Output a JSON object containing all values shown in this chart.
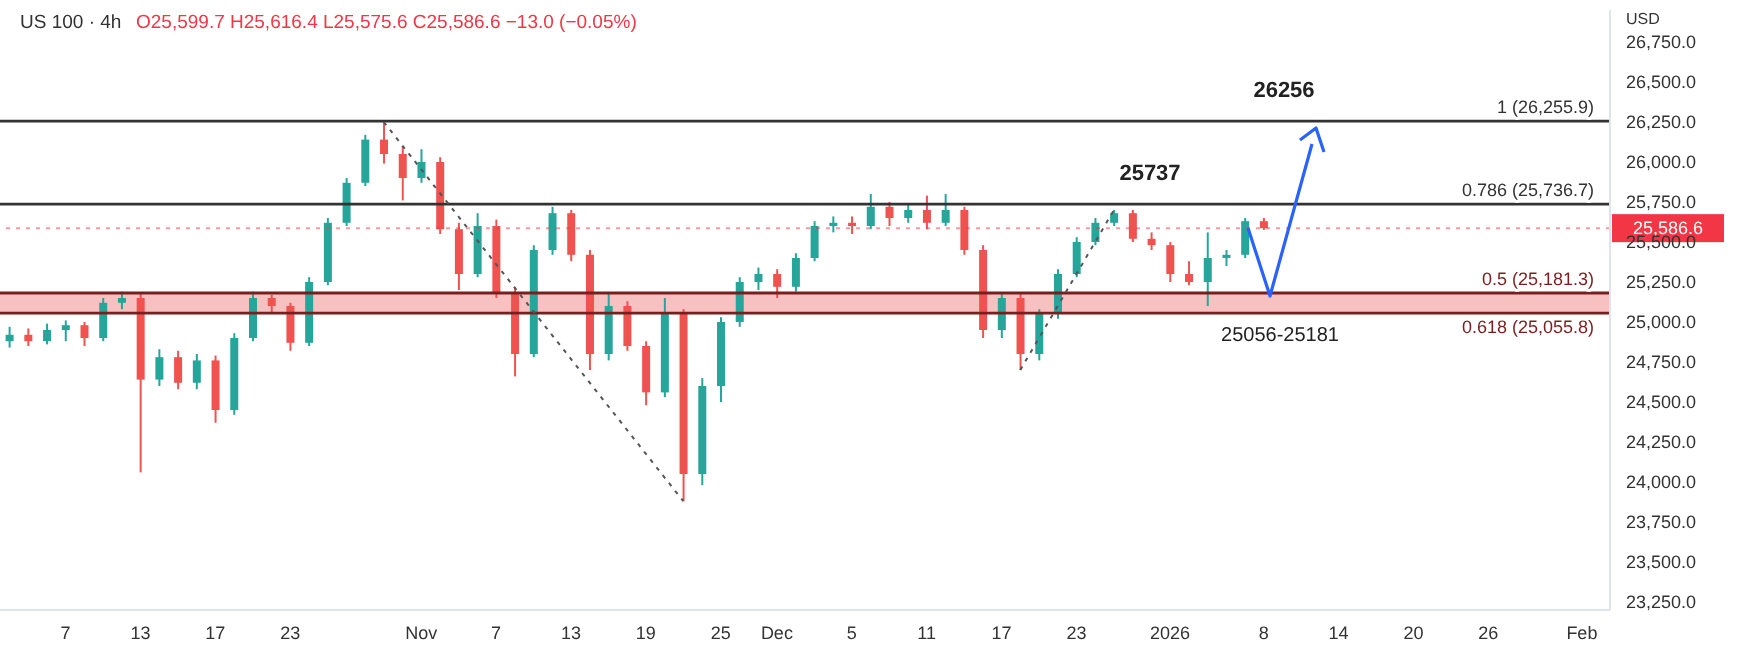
{
  "chart_data": {
    "type": "candlestick",
    "title": "US 100 · 4h",
    "subtitle": "O25,599.7 H25,616.4 L25,575.6 C25,586.6 −13.0 (−0.05%)",
    "ylabel": "USD",
    "categories": [
      null,
      null,
      null,
      "7",
      null,
      null,
      null,
      "13",
      null,
      null,
      null,
      "17",
      null,
      null,
      null,
      "23",
      null,
      null,
      null,
      null,
      null,
      null,
      "Nov",
      null,
      null,
      null,
      "7",
      null,
      null,
      null,
      "13",
      null,
      null,
      null,
      "19",
      null,
      null,
      null,
      "25",
      null,
      null,
      "Dec",
      null,
      null,
      null,
      "5",
      null,
      null,
      null,
      "11",
      null,
      null,
      null,
      "17",
      null,
      null,
      null,
      "23",
      null,
      null,
      null,
      null,
      "2026",
      null,
      null,
      null,
      null,
      "8",
      null,
      null,
      null,
      "14",
      null,
      null,
      null,
      "20",
      null,
      null,
      null,
      "26",
      null,
      null,
      null,
      null,
      "Feb",
      null
    ],
    "ohlc": [
      [
        24880,
        24970,
        24840,
        24920
      ],
      [
        24920,
        24960,
        24850,
        24880
      ],
      [
        24880,
        24990,
        24860,
        24950
      ],
      [
        24950,
        25010,
        24880,
        24980
      ],
      [
        24980,
        25000,
        24850,
        24900
      ],
      [
        24900,
        25150,
        24880,
        25120
      ],
      [
        25120,
        25190,
        25080,
        25150
      ],
      [
        25150,
        25180,
        24060,
        24640
      ],
      [
        24640,
        24830,
        24600,
        24780
      ],
      [
        24780,
        24820,
        24580,
        24620
      ],
      [
        24620,
        24800,
        24580,
        24760
      ],
      [
        24760,
        24790,
        24370,
        24450
      ],
      [
        24450,
        24930,
        24420,
        24900
      ],
      [
        24900,
        25190,
        24880,
        25150
      ],
      [
        25150,
        25170,
        25060,
        25100
      ],
      [
        25100,
        25120,
        24820,
        24870
      ],
      [
        24870,
        25280,
        24850,
        25250
      ],
      [
        25250,
        25650,
        25230,
        25620
      ],
      [
        25620,
        25900,
        25600,
        25870
      ],
      [
        25870,
        26170,
        25850,
        26140
      ],
      [
        26140,
        26256,
        25990,
        26050
      ],
      [
        26050,
        26100,
        25760,
        25900
      ],
      [
        25900,
        26080,
        25870,
        26000
      ],
      [
        26000,
        26030,
        25550,
        25580
      ],
      [
        25580,
        25620,
        25200,
        25300
      ],
      [
        25300,
        25680,
        25280,
        25600
      ],
      [
        25600,
        25640,
        25150,
        25180
      ],
      [
        25180,
        25220,
        24660,
        24800
      ],
      [
        24800,
        25480,
        24780,
        25450
      ],
      [
        25450,
        25720,
        25420,
        25680
      ],
      [
        25680,
        25700,
        25380,
        25420
      ],
      [
        25420,
        25450,
        24700,
        24800
      ],
      [
        24800,
        25180,
        24760,
        25100
      ],
      [
        25100,
        25130,
        24820,
        24850
      ],
      [
        24850,
        24880,
        24480,
        24560
      ],
      [
        24560,
        25150,
        24530,
        25050
      ],
      [
        25050,
        25080,
        23880,
        24050
      ],
      [
        24050,
        24650,
        23980,
        24600
      ],
      [
        24600,
        25030,
        24500,
        25000
      ],
      [
        25000,
        25280,
        24970,
        25250
      ],
      [
        25250,
        25340,
        25200,
        25300
      ],
      [
        25300,
        25330,
        25150,
        25220
      ],
      [
        25220,
        25430,
        25190,
        25400
      ],
      [
        25400,
        25630,
        25380,
        25600
      ],
      [
        25600,
        25660,
        25560,
        25620
      ],
      [
        25620,
        25660,
        25550,
        25600
      ],
      [
        25600,
        25800,
        25580,
        25720
      ],
      [
        25720,
        25750,
        25600,
        25650
      ],
      [
        25650,
        25740,
        25620,
        25700
      ],
      [
        25700,
        25790,
        25580,
        25620
      ],
      [
        25620,
        25800,
        25600,
        25700
      ],
      [
        25700,
        25720,
        25420,
        25450
      ],
      [
        25450,
        25480,
        24900,
        24950
      ],
      [
        24950,
        25180,
        24900,
        25150
      ],
      [
        25150,
        25180,
        24700,
        24800
      ],
      [
        24800,
        25080,
        24760,
        25050
      ],
      [
        25050,
        25330,
        25020,
        25300
      ],
      [
        25300,
        25530,
        25280,
        25500
      ],
      [
        25500,
        25650,
        25480,
        25620
      ],
      [
        25620,
        25700,
        25600,
        25680
      ],
      [
        25680,
        25700,
        25500,
        25520
      ],
      [
        25520,
        25560,
        25450,
        25480
      ],
      [
        25480,
        25500,
        25250,
        25300
      ],
      [
        25300,
        25380,
        25230,
        25250
      ],
      [
        25250,
        25560,
        25100,
        25400
      ],
      [
        25400,
        25450,
        25350,
        25420
      ],
      [
        25420,
        25650,
        25400,
        25630
      ],
      [
        25630,
        25650,
        25575.6,
        25586.6
      ],
      null,
      null,
      null,
      null,
      null,
      null,
      null,
      null,
      null,
      null,
      null,
      null,
      null,
      null,
      null,
      null,
      null,
      null
    ],
    "colors": [
      "#26a69a",
      "#ef5350",
      "#26a69a",
      "#26a69a",
      "#ef5350",
      "#26a69a",
      "#26a69a",
      "#ef5350",
      "#26a69a",
      "#ef5350",
      "#26a69a",
      "#ef5350",
      "#26a69a",
      "#26a69a",
      "#ef5350",
      "#ef5350",
      "#26a69a",
      "#26a69a",
      "#26a69a",
      "#26a69a",
      "#ef5350",
      "#ef5350",
      "#26a69a",
      "#ef5350",
      "#ef5350",
      "#26a69a",
      "#ef5350",
      "#ef5350",
      "#26a69a",
      "#26a69a",
      "#ef5350",
      "#ef5350",
      "#26a69a",
      "#ef5350",
      "#ef5350",
      "#26a69a",
      "#ef5350",
      "#26a69a",
      "#26a69a",
      "#26a69a",
      "#26a69a",
      "#ef5350",
      "#26a69a",
      "#26a69a",
      "#26a69a",
      "#ef5350",
      "#26a69a",
      "#ef5350",
      "#26a69a",
      "#ef5350",
      "#26a69a",
      "#ef5350",
      "#ef5350",
      "#26a69a",
      "#ef5350",
      "#26a69a",
      "#26a69a",
      "#26a69a",
      "#26a69a",
      "#26a69a",
      "#ef5350",
      "#ef5350",
      "#ef5350",
      "#ef5350",
      "#26a69a",
      "#26a69a",
      "#26a69a",
      "#ef5350",
      null,
      null,
      null,
      null,
      null,
      null,
      null,
      null,
      null,
      null,
      null,
      null,
      null,
      null,
      null,
      null,
      null,
      null
    ],
    "series": [
      {
        "type": "line",
        "line_style": "dotted",
        "color": "#555555",
        "values": [
          null,
          null,
          null,
          null,
          null,
          null,
          null,
          null,
          null,
          null,
          null,
          null,
          null,
          null,
          null,
          null,
          null,
          null,
          null,
          null,
          26250,
          null,
          null,
          null,
          null,
          null,
          null,
          null,
          null,
          null,
          null,
          null,
          null,
          null,
          null,
          null,
          23880,
          null,
          null,
          null,
          null,
          null,
          null,
          null,
          null,
          null,
          null,
          null,
          null,
          null,
          null,
          null,
          null,
          null,
          null,
          null,
          null,
          null,
          null,
          null,
          null,
          null,
          null,
          null,
          null,
          null,
          null,
          null,
          null,
          null,
          null,
          null,
          null,
          null,
          null,
          null,
          null,
          null,
          null,
          null,
          null,
          null,
          null,
          null,
          null,
          null
        ]
      },
      {
        "type": "line",
        "line_style": "dotted",
        "color": "#555555",
        "values": [
          null,
          null,
          null,
          null,
          null,
          null,
          null,
          null,
          null,
          null,
          null,
          null,
          null,
          null,
          null,
          null,
          null,
          null,
          null,
          null,
          null,
          null,
          null,
          null,
          null,
          null,
          null,
          null,
          null,
          null,
          null,
          null,
          null,
          null,
          null,
          null,
          null,
          null,
          null,
          null,
          null,
          null,
          null,
          null,
          null,
          null,
          null,
          null,
          null,
          null,
          null,
          null,
          null,
          null,
          24700,
          null,
          null,
          null,
          null,
          25700,
          null,
          null,
          null,
          null,
          null,
          null,
          null,
          null,
          null,
          null,
          null,
          null,
          null,
          null,
          null,
          null,
          null,
          null,
          null,
          null,
          null,
          null,
          null,
          null,
          null,
          null
        ]
      }
    ],
    "ylim": [
      23200,
      26950
    ],
    "yticks": [
      {
        "value": 23250,
        "label": "23,250.0"
      },
      {
        "value": 23500,
        "label": "23,500.0"
      },
      {
        "value": 23750,
        "label": "23,750.0"
      },
      {
        "value": 24000,
        "label": "24,000.0"
      },
      {
        "value": 24250,
        "label": "24,250.0"
      },
      {
        "value": 24500,
        "label": "24,500.0"
      },
      {
        "value": 24750,
        "label": "24,750.0"
      },
      {
        "value": 25000,
        "label": "25,000.0"
      },
      {
        "value": 25250,
        "label": "25,250.0"
      },
      {
        "value": 25500,
        "label": "25,500.0"
      },
      {
        "value": 25750,
        "label": "25,750.0"
      },
      {
        "value": 26000,
        "label": "26,000.0"
      },
      {
        "value": 26250,
        "label": "26,250.0"
      },
      {
        "value": 26500,
        "label": "26,500.0"
      },
      {
        "value": 26750,
        "label": "26,750.0"
      }
    ],
    "ref_lines": [
      {
        "axis": "y",
        "value": 26255.9,
        "label": "1 (26,255.9)",
        "color": "#333333"
      },
      {
        "axis": "y",
        "value": 25736.7,
        "label": "0.786 (25,736.7)",
        "color": "#333333"
      },
      {
        "axis": "y",
        "value": 25181.3,
        "label": "0.5 (25,181.3)",
        "color": "#7a1f1f"
      },
      {
        "axis": "y",
        "value": 25055.8,
        "label": "0.618 (25,055.8)",
        "color": "#7a1f1f"
      },
      {
        "axis": "y",
        "value": 25586.6,
        "label": "25,586.6",
        "color": "#f23645",
        "line_style": "dotted"
      }
    ],
    "bands": [
      {
        "axis": "y",
        "from": 25055.8,
        "to": 25181.3,
        "label": "25056-25181",
        "color": "#f4a6a6"
      }
    ],
    "annotations": [
      {
        "text": "26256",
        "y": 26256
      },
      {
        "text": "25737",
        "y": 25737
      }
    ]
  }
}
